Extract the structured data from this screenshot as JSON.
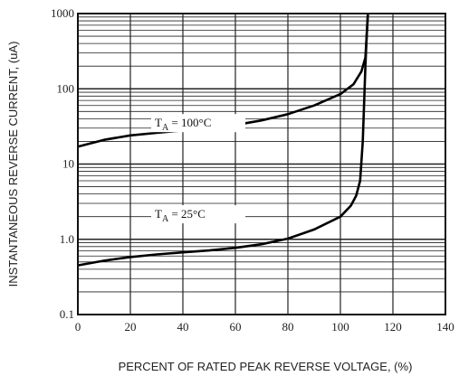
{
  "chart_data": {
    "type": "line",
    "title": "",
    "xlabel": "PERCENT OF RATED PEAK REVERSE VOLTAGE, (%)",
    "ylabel": "INSTANTANEOUS REVERSE CURRENT, (uA)",
    "xlim": [
      0,
      140
    ],
    "ylim": [
      0.1,
      1000
    ],
    "y_scale": "log",
    "grid": true,
    "x_ticks": [
      "0",
      "20",
      "40",
      "60",
      "80",
      "100",
      "120",
      "140"
    ],
    "y_ticks": [
      "0.1",
      "1.0",
      "10",
      "100",
      "1000"
    ],
    "series": [
      {
        "name": "T_A = 100°C",
        "label_main": "T",
        "label_sub": "A",
        "label_rest": " = 100°C",
        "x": [
          0,
          10,
          20,
          30,
          40,
          50,
          60,
          70,
          80,
          90,
          100,
          105,
          108,
          109.5,
          110,
          110.5
        ],
        "y": [
          17,
          21,
          24,
          26,
          28,
          30,
          33,
          38,
          46,
          60,
          85,
          115,
          170,
          260,
          500,
          1000
        ]
      },
      {
        "name": "T_A = 25°C",
        "label_main": "T",
        "label_sub": "A",
        "label_rest": " = 25°C",
        "x": [
          0,
          10,
          20,
          30,
          40,
          50,
          60,
          70,
          80,
          90,
          100,
          104,
          106,
          107.5,
          108.5,
          109,
          109.5,
          110,
          110.5
        ],
        "y": [
          0.45,
          0.52,
          0.58,
          0.63,
          0.67,
          0.71,
          0.77,
          0.86,
          1.02,
          1.35,
          2.0,
          2.8,
          3.8,
          6.0,
          20,
          60,
          200,
          500,
          1000
        ]
      }
    ]
  }
}
